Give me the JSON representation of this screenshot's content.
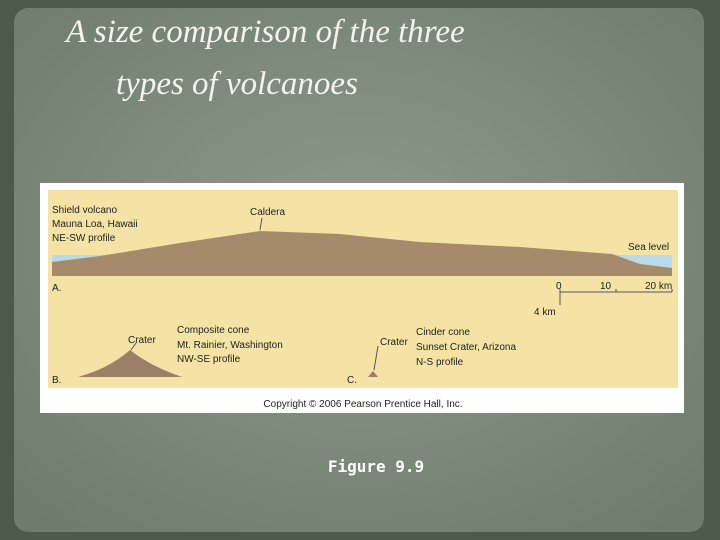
{
  "slide": {
    "title_lines": [
      "A size comparison of the three",
      "types of volcanoes"
    ],
    "caption": "Figure 9.9"
  },
  "figure": {
    "shield": {
      "name": "Shield volcano",
      "example": "Mauna Loa, Hawaii",
      "profile": "NE-SW profile",
      "feature": "Caldera",
      "sea": "Sea level",
      "letter": "A."
    },
    "scale": {
      "ticks": [
        "0",
        "10",
        "20 km"
      ],
      "vertical": "4 km"
    },
    "composite": {
      "name": "Composite cone",
      "example": "Mt. Rainier, Washington",
      "profile": "NW-SE profile",
      "feature": "Crater",
      "letter": "B."
    },
    "cinder": {
      "name": "Cinder cone",
      "example": "Sunset Crater, Arizona",
      "profile": "N-S profile",
      "feature": "Crater",
      "letter": "C."
    },
    "copyright": "Copyright © 2006 Pearson Prentice Hall, Inc."
  }
}
